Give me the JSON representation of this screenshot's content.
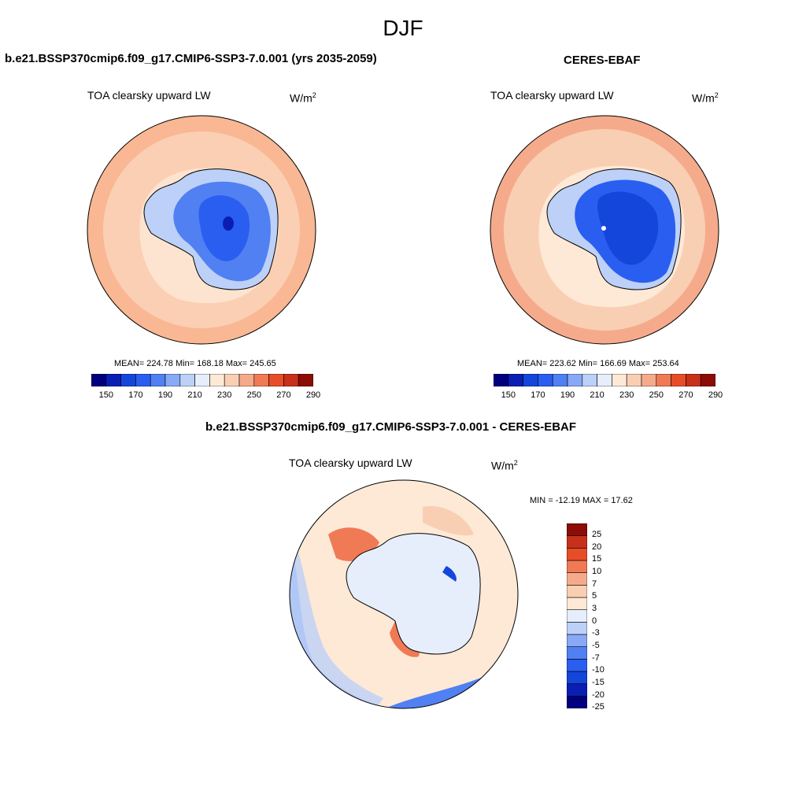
{
  "figure": {
    "title": "DJF"
  },
  "panels": [
    {
      "title": "b.e21.BSSP370cmip6.f09_g17.CMIP6-SSP3-7.0.001 (yrs 2035-2059)",
      "variable": "TOA clearsky upward LW",
      "units_base": "W/m",
      "units_exp": "2",
      "stats": "MEAN= 224.78  Min= 168.18  Max= 245.65"
    },
    {
      "title": "CERES-EBAF",
      "variable": "TOA clearsky upward LW",
      "units_base": "W/m",
      "units_exp": "2",
      "stats": "MEAN= 223.62  Min= 166.69  Max= 253.64"
    },
    {
      "title": "b.e21.BSSP370cmip6.f09_g17.CMIP6-SSP3-7.0.001 - CERES-EBAF",
      "variable": "TOA clearsky upward LW",
      "units_base": "W/m",
      "units_exp": "2",
      "stats": "MIN = -12.19 MAX =  17.62"
    }
  ],
  "colorbar_main": {
    "colors": [
      "#00007f",
      "#0a1eb4",
      "#1446dc",
      "#2a5ef0",
      "#5080f2",
      "#88a9f5",
      "#bcd0f8",
      "#e6eefc",
      "#fde9d6",
      "#f9cfb3",
      "#f5ab8b",
      "#f07a55",
      "#e74e27",
      "#c7301a",
      "#8b0d06"
    ],
    "tick_labels": [
      "150",
      "170",
      "190",
      "210",
      "230",
      "250",
      "270",
      "290"
    ]
  },
  "colorbar_diff": {
    "colors": [
      "#00007f",
      "#0a1eb4",
      "#1446dc",
      "#2a5ef0",
      "#5080f2",
      "#88a9f5",
      "#bcd0f8",
      "#e6eefc",
      "#fde9d6",
      "#f9cfb3",
      "#f5ab8b",
      "#f07a55",
      "#e74e27",
      "#c7301a",
      "#8b0d06"
    ],
    "tick_labels": [
      "25",
      "20",
      "15",
      "10",
      "7",
      "5",
      "3",
      "0",
      "-3",
      "-5",
      "-7",
      "-10",
      "-15",
      "-20",
      "-25"
    ]
  }
}
